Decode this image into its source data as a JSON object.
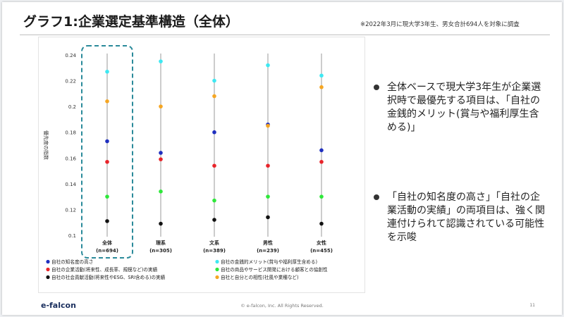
{
  "title": "グラフ1:企業選定基準構造（全体）",
  "note": "※2022年3月に現大学3年生、男女合計694人を対象に調査",
  "bullets": [
    "全体ベースで現大学3年生が企業選択時で最優先する項目は、「自社の金銭的メリット(賞与や福利厚生含める)」",
    "「自社の知名度の高さ」「自社の企業活動の実績」の両項目は、強く関連付けられて認識されている可能性を示唆"
  ],
  "footer": {
    "logo": "e-falcon",
    "copyright": "© e-falcon, Inc. All Rights Reserved.",
    "page": "11"
  },
  "chart_data": {
    "type": "scatter",
    "ylabel": "優先度の指数",
    "ylim": [
      0.1,
      0.24
    ],
    "yticks": [
      "0.24",
      "0.22",
      "0.2",
      "0.18",
      "0.16",
      "0.14",
      "0.12",
      "0.1"
    ],
    "highlighted_category_index": 0,
    "highlight_color": "#2a8a9a",
    "categories": [
      {
        "name": "全体",
        "n": "(n=694)"
      },
      {
        "name": "理系",
        "n": "(n=305)"
      },
      {
        "name": "文系",
        "n": "(n=389)"
      },
      {
        "name": "男性",
        "n": "(n=239)"
      },
      {
        "name": "女性",
        "n": "(n=455)"
      }
    ],
    "series": [
      {
        "name": "自社の知名度の高さ",
        "color": "#1f2fbf",
        "values": [
          0.173,
          0.164,
          0.18,
          0.186,
          0.166
        ]
      },
      {
        "name": "自社の金銭的メリット(賞与や福利厚生含める)",
        "color": "#3ee8f2",
        "values": [
          0.227,
          0.235,
          0.22,
          0.232,
          0.224
        ]
      },
      {
        "name": "自社の企業活動(将来性、成長率、規模など)の実績",
        "color": "#e8242a",
        "values": [
          0.157,
          0.159,
          0.154,
          0.154,
          0.157
        ]
      },
      {
        "name": "自社の商品やサービス開発における顧客との協創性",
        "color": "#2ee83a",
        "values": [
          0.13,
          0.134,
          0.127,
          0.13,
          0.13
        ]
      },
      {
        "name": "自社の社会貢献活動(将来性やESG、SRI含める)の実績",
        "color": "#111111",
        "values": [
          0.111,
          0.109,
          0.112,
          0.114,
          0.109
        ]
      },
      {
        "name": "自社と自分との相性(社風や業種など)",
        "color": "#f5a623",
        "values": [
          0.204,
          0.2,
          0.208,
          0.185,
          0.215
        ]
      }
    ]
  }
}
